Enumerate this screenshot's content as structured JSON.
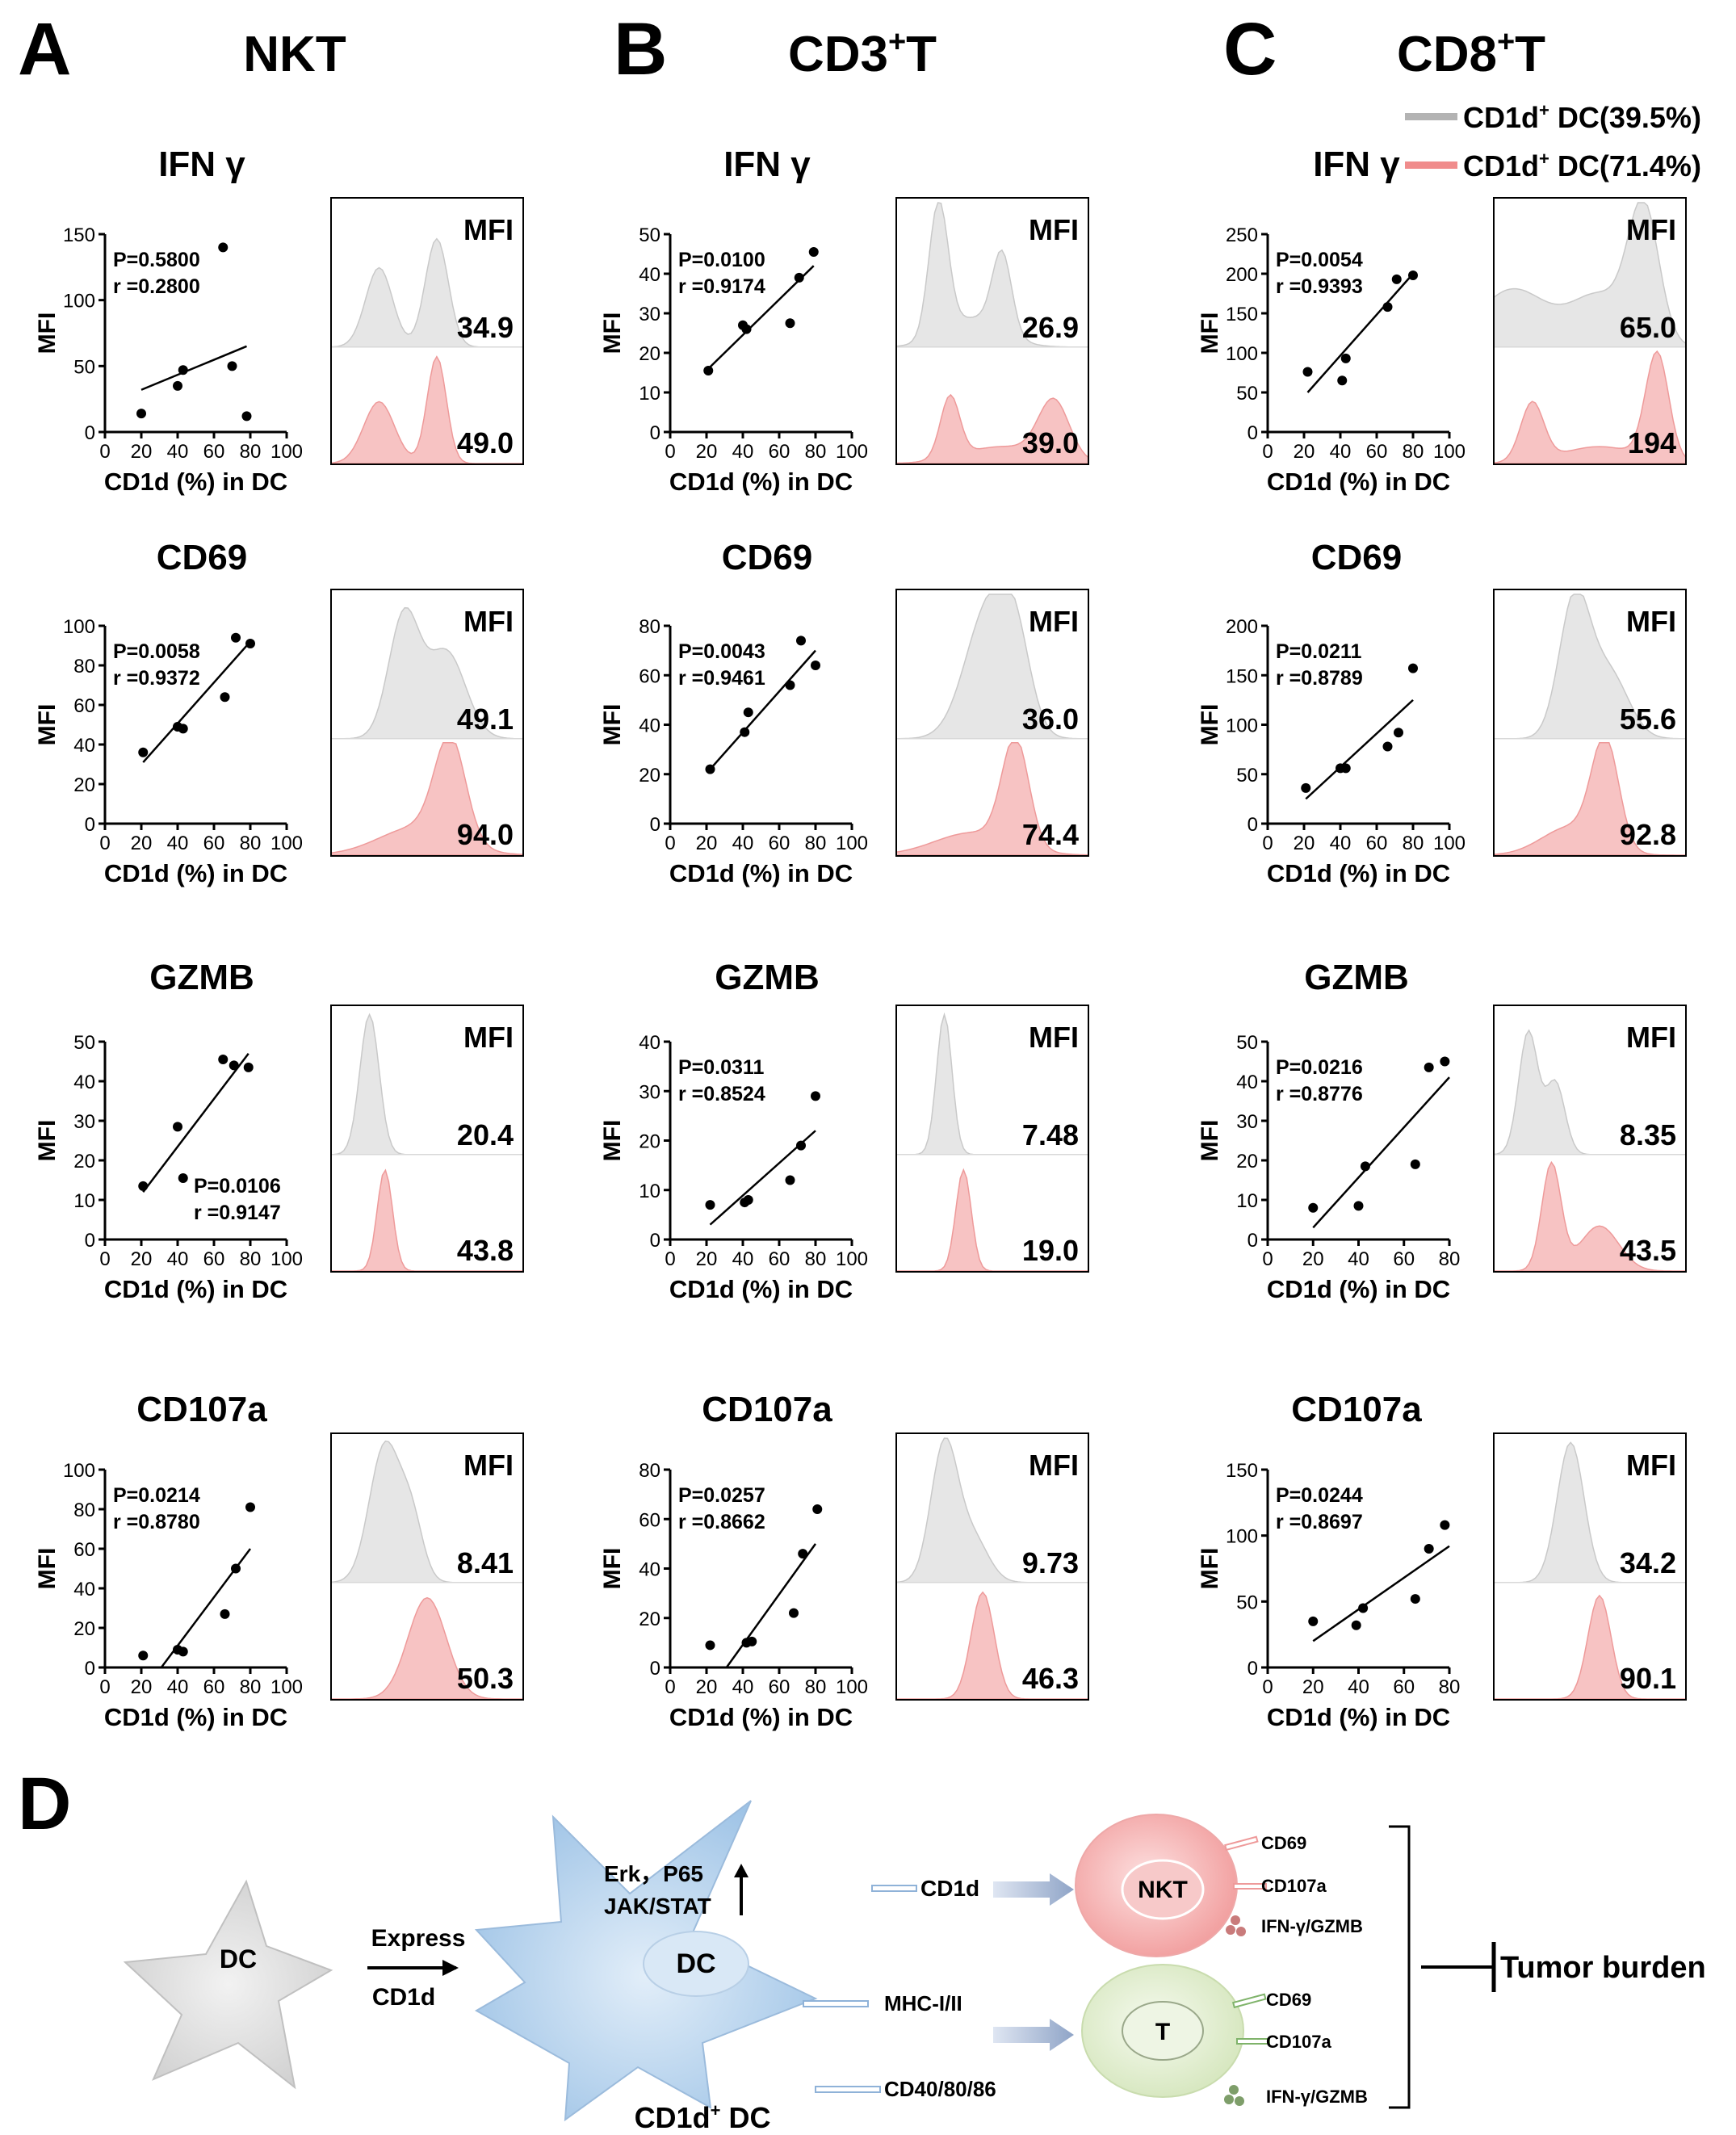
{
  "panel_letters": [
    "A",
    "B",
    "C",
    "D"
  ],
  "columns": [
    {
      "letter": "A",
      "title": "NKT",
      "sup": ""
    },
    {
      "letter": "B",
      "title": "CD3",
      "sup": "+",
      "suffix": "T"
    },
    {
      "letter": "C",
      "title": "CD8",
      "sup": "+",
      "suffix": "T"
    }
  ],
  "legend": [
    {
      "prefix": "CD1d",
      "sup": "+",
      "label": " DC(39.5%)",
      "color": "#b3b3b3"
    },
    {
      "prefix": "CD1d",
      "sup": "+",
      "label": " DC(71.4%)",
      "color": "#f08c8c"
    }
  ],
  "rows": [
    "IFN γ",
    "CD69",
    "GZMB",
    "CD107a"
  ],
  "axis_labels": {
    "x": "CD1d (%) in DC",
    "y": "MFI",
    "hist": "MFI"
  },
  "colors": {
    "gray_fill": "#e6e6e6",
    "gray_line": "#c9c9c9",
    "red_fill": "#f7c3c3",
    "red_line": "#ee9a9a",
    "blue_cell": "#bcd6ee",
    "gray_cell": "#e2e2e2",
    "nkt_cell": "#f7b8b8",
    "t_cell": "#e4efd4"
  },
  "chart_data": [
    {
      "type": "scatter",
      "title": "IFN γ",
      "column": "NKT",
      "P": "P=0.5800",
      "r": "r =0.2800",
      "x": [
        20,
        40,
        43,
        65,
        70,
        78
      ],
      "y": [
        14,
        35,
        47,
        140,
        50,
        12
      ],
      "fit": [
        [
          20,
          32
        ],
        [
          78,
          65
        ]
      ],
      "xlim": [
        0,
        100
      ],
      "xticks": [
        0,
        20,
        40,
        60,
        80,
        100
      ],
      "ylim": [
        0,
        150
      ],
      "yticks": [
        0,
        50,
        100,
        150
      ],
      "mfi_low": "34.9",
      "mfi_high": "49.0"
    },
    {
      "type": "scatter",
      "title": "IFN γ",
      "column": "CD3+T",
      "P": "P=0.0100",
      "r": "r =0.9174",
      "x": [
        21,
        40,
        42,
        66,
        71,
        79
      ],
      "y": [
        15.5,
        27,
        26,
        27.5,
        39,
        45.5
      ],
      "fit": [
        [
          21,
          16
        ],
        [
          79,
          42
        ]
      ],
      "xlim": [
        0,
        100
      ],
      "xticks": [
        0,
        20,
        40,
        60,
        80,
        100
      ],
      "ylim": [
        0,
        50
      ],
      "yticks": [
        0,
        10,
        20,
        30,
        40,
        50
      ],
      "mfi_low": "26.9",
      "mfi_high": "39.0"
    },
    {
      "type": "scatter",
      "title": "IFN γ",
      "column": "CD8+T",
      "P": "P=0.0054",
      "r": "r =0.9393",
      "x": [
        22,
        41,
        43,
        66,
        71,
        80
      ],
      "y": [
        76,
        65,
        93,
        158,
        193,
        198
      ],
      "fit": [
        [
          22,
          50
        ],
        [
          80,
          200
        ]
      ],
      "xlim": [
        0,
        100
      ],
      "xticks": [
        0,
        20,
        40,
        60,
        80,
        100
      ],
      "ylim": [
        0,
        250
      ],
      "yticks": [
        0,
        50,
        100,
        150,
        200,
        250
      ],
      "mfi_low": "65.0",
      "mfi_high": "194"
    },
    {
      "type": "scatter",
      "title": "CD69",
      "column": "NKT",
      "P": "P=0.0058",
      "r": "r =0.9372",
      "x": [
        21,
        40,
        43,
        66,
        72,
        80
      ],
      "y": [
        36,
        49,
        48,
        64,
        94,
        91
      ],
      "fit": [
        [
          21,
          31
        ],
        [
          80,
          92
        ]
      ],
      "xlim": [
        0,
        100
      ],
      "xticks": [
        0,
        20,
        40,
        60,
        80,
        100
      ],
      "ylim": [
        0,
        100
      ],
      "yticks": [
        0,
        20,
        40,
        60,
        80,
        100
      ],
      "mfi_low": "49.1",
      "mfi_high": "94.0"
    },
    {
      "type": "scatter",
      "title": "CD69",
      "column": "CD3+T",
      "P": "P=0.0043",
      "r": "r =0.9461",
      "x": [
        22,
        41,
        43,
        66,
        72,
        80
      ],
      "y": [
        22,
        37,
        45,
        56,
        74,
        64
      ],
      "fit": [
        [
          22,
          22
        ],
        [
          80,
          70
        ]
      ],
      "xlim": [
        0,
        100
      ],
      "xticks": [
        0,
        20,
        40,
        60,
        80,
        100
      ],
      "ylim": [
        0,
        80
      ],
      "yticks": [
        0,
        20,
        40,
        60,
        80
      ],
      "mfi_low": "36.0",
      "mfi_high": "74.4"
    },
    {
      "type": "scatter",
      "title": "CD69",
      "column": "CD8+T",
      "P": "P=0.0211",
      "r": "r =0.8789",
      "x": [
        21,
        40,
        43,
        66,
        72,
        80
      ],
      "y": [
        36,
        56,
        56,
        78,
        92,
        157
      ],
      "fit": [
        [
          21,
          25
        ],
        [
          80,
          125
        ]
      ],
      "xlim": [
        0,
        100
      ],
      "xticks": [
        0,
        20,
        40,
        60,
        80,
        100
      ],
      "ylim": [
        0,
        200
      ],
      "yticks": [
        0,
        50,
        100,
        150,
        200
      ],
      "mfi_low": "55.6",
      "mfi_high": "92.8"
    },
    {
      "type": "scatter",
      "title": "GZMB",
      "column": "NKT",
      "P": "P=0.0106",
      "r": "r =0.9147",
      "x": [
        21,
        40,
        43,
        65,
        71,
        79
      ],
      "y": [
        13.5,
        28.5,
        15.5,
        45.5,
        44,
        43.5
      ],
      "fit": [
        [
          21,
          12
        ],
        [
          79,
          47
        ]
      ],
      "xlim": [
        0,
        100
      ],
      "xticks": [
        0,
        20,
        40,
        60,
        80,
        100
      ],
      "ylim": [
        0,
        50
      ],
      "yticks": [
        0,
        10,
        20,
        30,
        40,
        50
      ],
      "mfi_low": "20.4",
      "mfi_high": "43.8"
    },
    {
      "type": "scatter",
      "title": "GZMB",
      "column": "CD3+T",
      "P": "P=0.0311",
      "r": "r =0.8524",
      "x": [
        22,
        41,
        43,
        66,
        72,
        80
      ],
      "y": [
        7,
        7.5,
        8,
        12,
        19,
        29
      ],
      "fit": [
        [
          22,
          3
        ],
        [
          80,
          22
        ]
      ],
      "xlim": [
        0,
        100
      ],
      "xticks": [
        0,
        20,
        40,
        60,
        80,
        100
      ],
      "ylim": [
        0,
        40
      ],
      "yticks": [
        0,
        10,
        20,
        30,
        40
      ],
      "mfi_low": "7.48",
      "mfi_high": "19.0"
    },
    {
      "type": "scatter",
      "title": "GZMB",
      "column": "CD8+T",
      "P": "P=0.0216",
      "r": "r =0.8776",
      "x": [
        20,
        40,
        43,
        65,
        71,
        78
      ],
      "y": [
        8,
        8.5,
        18.5,
        19,
        43.5,
        45
      ],
      "fit": [
        [
          20,
          3
        ],
        [
          80,
          41
        ]
      ],
      "xlim": [
        0,
        80
      ],
      "xticks": [
        0,
        20,
        40,
        60,
        80
      ],
      "ylim": [
        0,
        50
      ],
      "yticks": [
        0,
        10,
        20,
        30,
        40,
        50
      ],
      "mfi_low": "8.35",
      "mfi_high": "43.5"
    },
    {
      "type": "scatter",
      "title": "CD107a",
      "column": "NKT",
      "P": "P=0.0214",
      "r": "r =0.8780",
      "x": [
        21,
        40,
        43,
        66,
        72,
        80
      ],
      "y": [
        6,
        9,
        8,
        27,
        50,
        81
      ],
      "fit": [
        [
          31,
          0
        ],
        [
          80,
          60
        ]
      ],
      "xlim": [
        0,
        100
      ],
      "xticks": [
        0,
        20,
        40,
        60,
        80,
        100
      ],
      "ylim": [
        0,
        100
      ],
      "yticks": [
        0,
        20,
        40,
        60,
        80,
        100
      ],
      "mfi_low": "8.41",
      "mfi_high": "50.3"
    },
    {
      "type": "scatter",
      "title": "CD107a",
      "column": "CD3+T",
      "P": "P=0.0257",
      "r": "r =0.8662",
      "x": [
        22,
        42,
        45,
        68,
        73,
        81
      ],
      "y": [
        9,
        10,
        10.5,
        22,
        46,
        64
      ],
      "fit": [
        [
          31,
          0
        ],
        [
          80,
          50
        ]
      ],
      "xlim": [
        0,
        100
      ],
      "xticks": [
        0,
        20,
        40,
        60,
        80,
        100
      ],
      "ylim": [
        0,
        80
      ],
      "yticks": [
        0,
        20,
        40,
        60,
        80
      ],
      "mfi_low": "9.73",
      "mfi_high": "46.3"
    },
    {
      "type": "scatter",
      "title": "CD107a",
      "column": "CD8+T",
      "P": "P=0.0244",
      "r": "r =0.8697",
      "x": [
        20,
        39,
        42,
        65,
        71,
        78
      ],
      "y": [
        35,
        32,
        45,
        52,
        90,
        108
      ],
      "fit": [
        [
          20,
          20
        ],
        [
          80,
          92
        ]
      ],
      "xlim": [
        0,
        80
      ],
      "xticks": [
        0,
        20,
        40,
        60,
        80
      ],
      "ylim": [
        0,
        150
      ],
      "yticks": [
        0,
        50,
        100,
        150
      ],
      "mfi_low": "34.2",
      "mfi_high": "90.1"
    }
  ],
  "schematic": {
    "dc_label": "DC",
    "express_label": "Express",
    "express_sub": "CD1d",
    "cd1d_dc_caption_prefix": "CD1d",
    "cd1d_dc_caption_sup": "+",
    "cd1d_dc_caption_suffix": " DC",
    "nucleus_label": "DC",
    "signal_line1": "Erk，P65",
    "signal_line2": "JAK/STAT",
    "molecules": [
      "CD1d",
      "MHC-I/II",
      "CD40/80/86"
    ],
    "nkt_label": "NKT",
    "t_label": "T",
    "nkt_markers": [
      "CD69",
      "CD107a",
      "IFN-γ/GZMB"
    ],
    "t_markers": [
      "CD69",
      "CD107a",
      "IFN-γ/GZMB"
    ],
    "outcome": "Tumor burden"
  }
}
